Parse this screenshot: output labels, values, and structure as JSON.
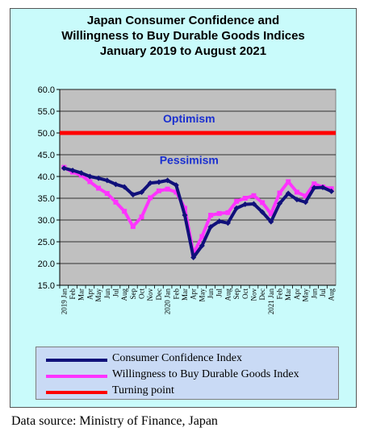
{
  "title": {
    "line1": "Japan Consumer Confidence and",
    "line2": "Willingness to Buy Durable Goods Indices",
    "line3": "January 2019 to August 2021"
  },
  "source": "Data source: Ministry of Finance, Japan",
  "colors": {
    "frame_bg": "#c9fbfb",
    "plot_bg": "#c0c0c0",
    "confidence": "#10107a",
    "willingness": "#ff33ff",
    "turning": "#ff0000",
    "region_text": "#1a2fd0"
  },
  "chart_data": {
    "type": "line",
    "ylim": [
      15,
      60
    ],
    "yticks": [
      "15.0",
      "20.0",
      "25.0",
      "30.0",
      "35.0",
      "40.0",
      "45.0",
      "50.0",
      "55.0",
      "60.0"
    ],
    "grid": true,
    "legend_position": "bottom",
    "categories": [
      "2019 Jan",
      "Feb",
      "Mar",
      "Apr",
      "May",
      "Jun",
      "Jul",
      "Aug",
      "Sep",
      "Oct",
      "Nov",
      "Dec",
      "2020 Jan",
      "Feb",
      "Mar",
      "Apr",
      "May",
      "Jun",
      "Jul",
      "Aug",
      "Sep",
      "Oct",
      "Nov",
      "Dec",
      "2021 Jan",
      "Feb",
      "Mar",
      "Apr",
      "May",
      "Jun",
      "Jul",
      "Aug"
    ],
    "series": [
      {
        "name": "Consumer Confidence Index",
        "values": [
          41.9,
          41.4,
          40.8,
          40.0,
          39.6,
          39.1,
          38.2,
          37.6,
          35.8,
          36.4,
          38.5,
          38.7,
          39.1,
          38.0,
          31.1,
          21.4,
          24.1,
          28.4,
          29.7,
          29.3,
          32.7,
          33.6,
          33.7,
          31.8,
          29.6,
          33.8,
          36.1,
          34.7,
          34.1,
          37.4,
          37.5,
          36.6
        ]
      },
      {
        "name": "Willingness to Buy Durable Goods Index",
        "values": [
          42.1,
          41.0,
          40.3,
          38.8,
          37.3,
          36.1,
          34.1,
          32.0,
          28.5,
          30.7,
          35.1,
          36.7,
          37.1,
          36.4,
          32.7,
          22.3,
          26.2,
          31.1,
          31.5,
          31.7,
          34.3,
          35.0,
          35.6,
          34.0,
          31.4,
          36.2,
          38.8,
          36.4,
          35.5,
          38.3,
          37.6,
          37.2
        ]
      },
      {
        "name": "Turning point",
        "value": 50.0
      }
    ],
    "annotations": [
      {
        "text": "Optimism",
        "x": 14.5,
        "y": 52.4
      },
      {
        "text": "Pessimism",
        "x": 14.5,
        "y": 42.9
      }
    ]
  }
}
